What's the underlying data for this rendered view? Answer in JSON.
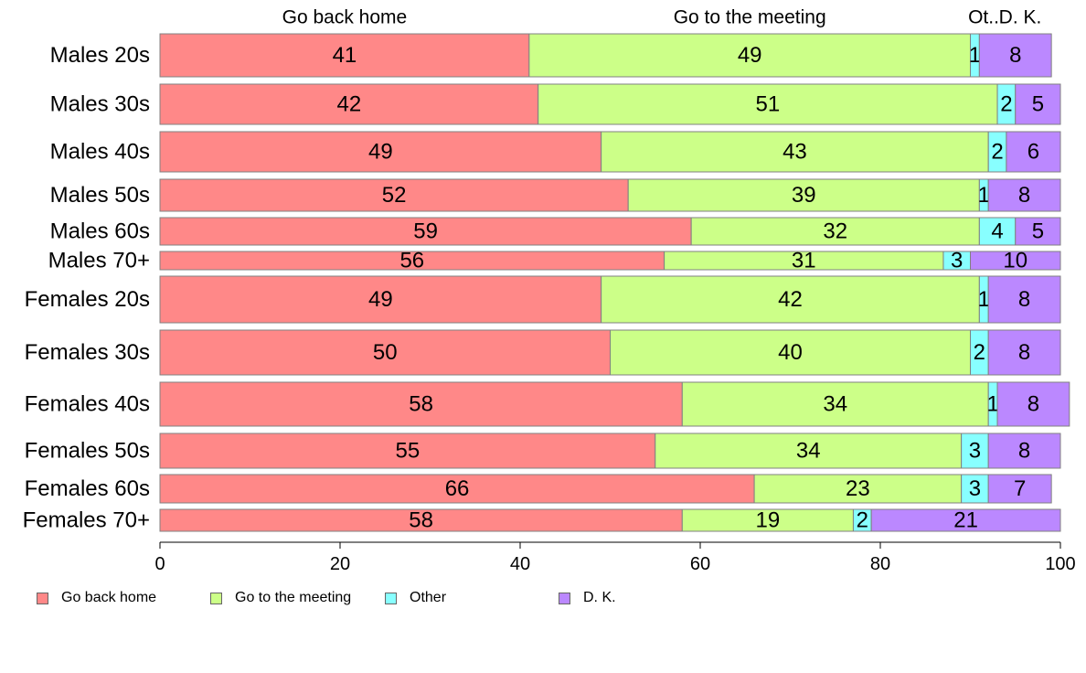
{
  "chart_data": {
    "type": "bar",
    "orientation": "horizontal",
    "stacked": true,
    "title": "",
    "xlabel": "",
    "ylabel": "",
    "xlim": [
      0,
      100
    ],
    "x_ticks": [
      "0",
      "20",
      "40",
      "60",
      "80",
      "100"
    ],
    "categories": [
      "Males 20s",
      "Males 30s",
      "Males 40s",
      "Males 50s",
      "Males 60s",
      "Males 70+",
      "Females 20s",
      "Females 30s",
      "Females 40s",
      "Females 50s",
      "Females 60s",
      "Females 70+"
    ],
    "column_headers": [
      "Go back home",
      "Go to the meeting",
      "Ot..",
      "D. K."
    ],
    "series": [
      {
        "name": "Go back home",
        "color": "#ff8888",
        "values": [
          41,
          42,
          49,
          52,
          59,
          56,
          49,
          50,
          58,
          55,
          66,
          58
        ]
      },
      {
        "name": "Go to the meeting",
        "color": "#ccff88",
        "values": [
          49,
          51,
          43,
          39,
          32,
          31,
          42,
          40,
          34,
          34,
          23,
          19
        ]
      },
      {
        "name": "Other",
        "color": "#88ffff",
        "values": [
          1,
          2,
          2,
          1,
          4,
          3,
          1,
          2,
          1,
          3,
          3,
          2
        ]
      },
      {
        "name": "D. K.",
        "color": "#bb88ff",
        "values": [
          8,
          5,
          6,
          8,
          5,
          10,
          8,
          8,
          8,
          8,
          7,
          21
        ]
      }
    ],
    "legend_position": "bottom",
    "grid": false
  }
}
